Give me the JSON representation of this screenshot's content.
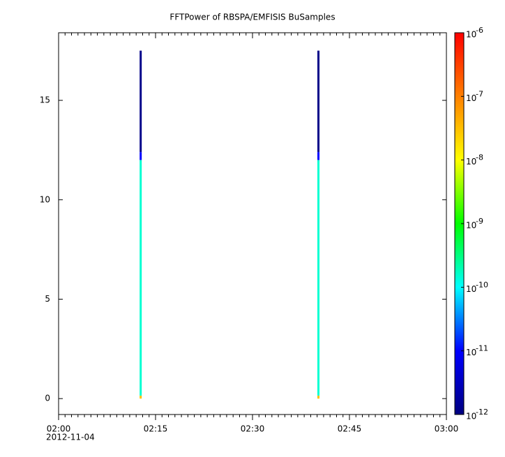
{
  "chart_data": {
    "type": "spectrogram",
    "title": "FFTPower of RBSPA/EMFISIS  BuSamples",
    "x_date_label": "2012-11-04",
    "xlim": [
      0,
      60
    ],
    "xticks": [
      {
        "value": 0,
        "label": "02:00"
      },
      {
        "value": 15,
        "label": "02:15"
      },
      {
        "value": 30,
        "label": "02:30"
      },
      {
        "value": 45,
        "label": "02:45"
      },
      {
        "value": 60,
        "label": "03:00"
      }
    ],
    "xminorticks": [
      1,
      2,
      3,
      4,
      5,
      6,
      7,
      8,
      9,
      10,
      11,
      12,
      13,
      14,
      16,
      17,
      18,
      19,
      20,
      21,
      22,
      23,
      24,
      25,
      26,
      27,
      28,
      29,
      31,
      32,
      33,
      34,
      35,
      36,
      37,
      38,
      39,
      40,
      41,
      42,
      43,
      44,
      46,
      47,
      48,
      49,
      50,
      51,
      52,
      53,
      54,
      55,
      56,
      57,
      58,
      59
    ],
    "ylim": [
      -0.8,
      18.4
    ],
    "yticks": [
      0,
      5,
      10,
      15
    ],
    "zlim": [
      1e-12,
      1e-06
    ],
    "zscale": "log",
    "zticks": [
      {
        "value": 1e-06,
        "label": "10",
        "exponent": "-6"
      },
      {
        "value": 1e-07,
        "label": "10",
        "exponent": "-7"
      },
      {
        "value": 1e-08,
        "label": "10",
        "exponent": "-8"
      },
      {
        "value": 1e-09,
        "label": "10",
        "exponent": "-9"
      },
      {
        "value": 1e-10,
        "label": "10",
        "exponent": "-10"
      },
      {
        "value": 1e-11,
        "label": "10",
        "exponent": "-11"
      },
      {
        "value": 1e-12,
        "label": "10",
        "exponent": "-12"
      }
    ],
    "colormap": [
      "#000080",
      "#0000ff",
      "#00ffff",
      "#00ff00",
      "#ffff00",
      "#ff8000",
      "#ff0000"
    ],
    "columns": [
      {
        "x": 12.7,
        "bins": [
          0,
          0.15,
          12.0,
          12.4,
          17.5
        ],
        "values": [
          3e-08,
          1.5e-10,
          1e-11,
          1.2e-12
        ]
      },
      {
        "x": 40.2,
        "bins": [
          0,
          0.15,
          12.0,
          12.4,
          17.5
        ],
        "values": [
          3e-08,
          1.5e-10,
          1e-11,
          1.2e-12
        ]
      }
    ]
  }
}
